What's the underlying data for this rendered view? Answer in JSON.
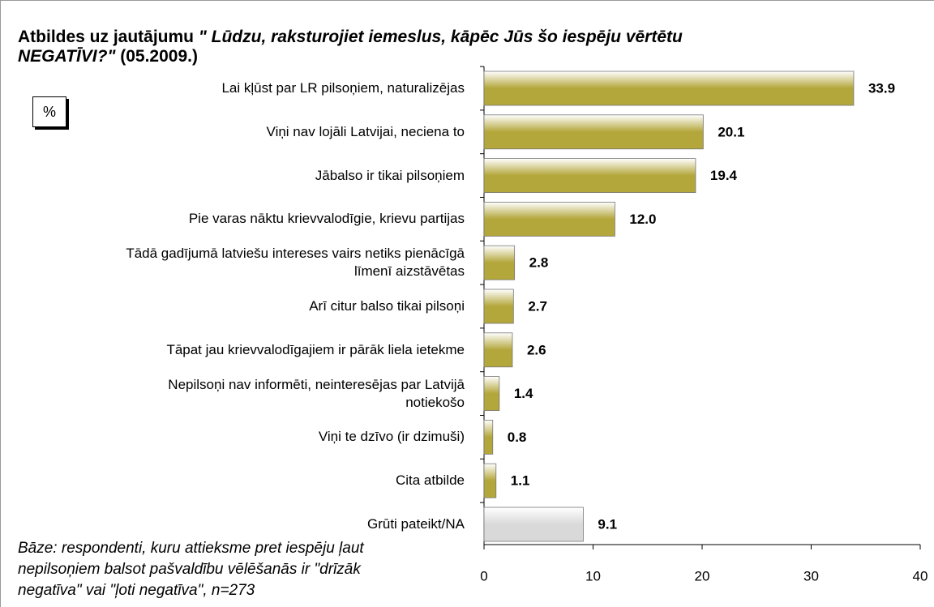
{
  "chart_data": {
    "type": "bar",
    "title": [
      [
        "Atbildes uz jautājumu ",
        "\" Lūdzu, raksturojiet iemeslus, kāpēc Jūs šo iespēju vērtētu"
      ],
      [
        "NEGATĪVI?\"",
        " (05.2009.)"
      ]
    ],
    "unit_label": "%",
    "categories": [
      "Lai kļūst par LR pilsoņiem, naturalizējas",
      "Viņi nav lojāli Latvijai, neciena to",
      "Jābalso ir tikai pilsoņiem",
      "Pie varas nāktu krievvalodīgie, krievu partijas",
      "Tādā gadījumā latviešu intereses vairs netiks pienācīgā\nlīmenī aizstāvētas",
      "Arī citur balso tikai pilsoņi",
      "Tāpat jau krievvalodīgajiem ir pārāk liela ietekme",
      "Nepilsoņi nav informēti, neinteresējas par Latvijā\nnotiekošo",
      "Viņi te dzīvo (ir dzimuši)",
      "Cita atbilde",
      "Grūti pateikt/NA"
    ],
    "values": [
      33.9,
      20.1,
      19.4,
      12.0,
      2.8,
      2.7,
      2.6,
      1.4,
      0.8,
      1.1,
      9.1
    ],
    "value_labels": [
      "33.9",
      "20.1",
      "19.4",
      "12.0",
      "2.8",
      "2.7",
      "2.6",
      "1.4",
      "0.8",
      "1.1",
      "9.1"
    ],
    "colors": [
      "#b3a63a",
      "#b3a63a",
      "#b3a63a",
      "#b3a63a",
      "#b3a63a",
      "#b3a63a",
      "#b3a63a",
      "#b3a63a",
      "#b3a63a",
      "#b3a63a",
      "#d9d9d9"
    ],
    "xlim": [
      0,
      40
    ],
    "xticks": [
      0,
      10,
      20,
      30,
      40
    ],
    "footnote": "Bāze: respondenti, kuru attieksme pret iespēju ļaut\nnepilsoņiem balsot pašvaldību vēlēšanās ir \"drīzāk\nnegatīva\" vai \"ļoti negatīva\", n=273"
  }
}
